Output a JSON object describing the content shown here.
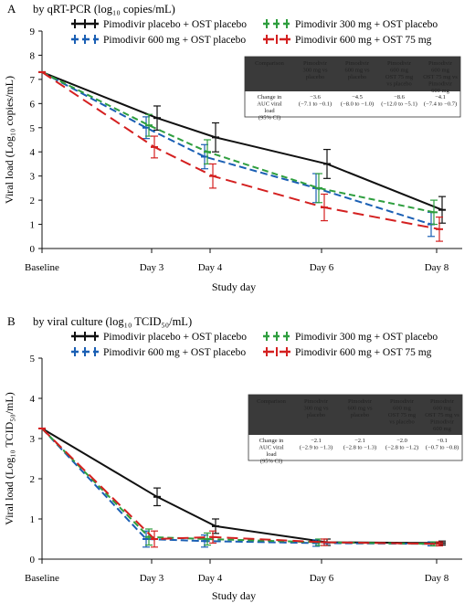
{
  "series_style": [
    {
      "color": "#111111",
      "dash": ""
    },
    {
      "color": "#1a5fb4",
      "dash": "8 4"
    },
    {
      "color": "#2e9e3e",
      "dash": "7 4"
    },
    {
      "color": "#d42020",
      "dash": "12 6"
    }
  ],
  "chart_data": [
    {
      "type": "line",
      "panel": "A",
      "title": "by qRT-PCR (log₁₀ copies/mL)",
      "ylabel": "Viral load (Log₁₀ copies/mL)",
      "xlabel": "Study day",
      "categories": [
        "Baseline",
        "Day 3",
        "Day 4",
        "Day 6",
        "Day 8"
      ],
      "yticks": [
        0,
        1,
        2,
        3,
        4,
        5,
        6,
        7,
        8,
        9
      ],
      "ylim": [
        0,
        9
      ],
      "grid": false,
      "legend_placement": "top",
      "series": [
        {
          "name": "Pimodivir placebo + OST placebo",
          "values": [
            7.3,
            5.4,
            4.6,
            3.5,
            1.6
          ],
          "err": [
            0,
            0.5,
            0.6,
            0.6,
            0.55
          ]
        },
        {
          "name": "Pimodivir 600 mg + OST placebo",
          "values": [
            7.3,
            5.0,
            3.8,
            2.5,
            1.0
          ],
          "err": [
            0,
            0.45,
            0.5,
            0.6,
            0.5
          ]
        },
        {
          "name": "Pimodivir 300 mg + OST placebo",
          "values": [
            7.3,
            5.1,
            4.0,
            2.5,
            1.5
          ],
          "err": [
            0,
            0.45,
            0.5,
            0.6,
            0.5
          ]
        },
        {
          "name": "Pimodivir 600 mg + OST 75 mg",
          "values": [
            7.3,
            4.2,
            3.0,
            1.7,
            0.8
          ],
          "err": [
            0,
            0.45,
            0.5,
            0.55,
            0.5
          ]
        }
      ],
      "table": {
        "headers": [
          [
            "Comparison"
          ],
          [
            "Pimodivir",
            "300 mg vs",
            "placebo"
          ],
          [
            "Pimodivir",
            "600 mg vs",
            "placebo"
          ],
          [
            "Pimodivir",
            "600 mg",
            "OST 75 mg",
            "vs placebo"
          ],
          [
            "Pimodivir",
            "600 mg",
            "OST 75 mg vs",
            "Pimodivir",
            "600 mg"
          ]
        ],
        "row_label": [
          "Change in",
          "AUC viral",
          "load",
          "(95% CI)"
        ],
        "row_values": [
          [
            "−3.6",
            "(−7.1 to −0.1)"
          ],
          [
            "−4.5",
            "(−8.0 to −1.0)"
          ],
          [
            "−8.6",
            "(−12.0 to −5.1)"
          ],
          [
            "−4.1",
            "(−7.4 to −0.7)"
          ]
        ]
      }
    },
    {
      "type": "line",
      "panel": "B",
      "title": "by viral culture (log₁₀ TCID₅₀/mL)",
      "ylabel": "Viral load (Log₁₀ TCID₅₀/mL)",
      "xlabel": "Study day",
      "categories": [
        "Baseline",
        "Day 3",
        "Day 4",
        "Day 6",
        "Day 8"
      ],
      "yticks": [
        0,
        1,
        2,
        3,
        4,
        5
      ],
      "ylim": [
        0,
        5
      ],
      "grid": false,
      "legend_placement": "top",
      "series": [
        {
          "name": "Pimodivir placebo + OST placebo",
          "values": [
            3.25,
            1.55,
            0.82,
            0.42,
            0.4
          ],
          "err": [
            0,
            0.22,
            0.18,
            0.08,
            0.05
          ]
        },
        {
          "name": "Pimodivir 600 mg + OST placebo",
          "values": [
            3.25,
            0.5,
            0.45,
            0.4,
            0.38
          ],
          "err": [
            0,
            0.2,
            0.15,
            0.08,
            0.05
          ]
        },
        {
          "name": "Pimodivir 300 mg + OST placebo",
          "values": [
            3.25,
            0.55,
            0.5,
            0.42,
            0.38
          ],
          "err": [
            0,
            0.2,
            0.15,
            0.08,
            0.05
          ]
        },
        {
          "name": "Pimodivir 600 mg + OST 75 mg",
          "values": [
            3.25,
            0.5,
            0.55,
            0.42,
            0.38
          ],
          "err": [
            0,
            0.2,
            0.15,
            0.08,
            0.05
          ]
        }
      ],
      "table": {
        "headers": [
          [
            "Comparison"
          ],
          [
            "Pimodivir",
            "300 mg vs",
            "placebo"
          ],
          [
            "Pimodivir",
            "600 mg vs",
            "placebo"
          ],
          [
            "Pimodivir",
            "600 mg",
            "OST 75 mg",
            "vs placebo"
          ],
          [
            "Pimodivir",
            "600 mg",
            "OST 75 mg vs",
            "Pimodivir",
            "600 mg"
          ]
        ],
        "row_label": [
          "Change in",
          "AUC viral",
          "load",
          "(95% CI)"
        ],
        "row_values": [
          [
            "−2.1",
            "(−2.9 to −1.3)"
          ],
          [
            "−2.1",
            "(−2.8 to −1.3)"
          ],
          [
            "−2.0",
            "(−2.8 to −1.2)"
          ],
          [
            "−0.1",
            "(−0.7 to −0.8)"
          ]
        ]
      }
    }
  ]
}
